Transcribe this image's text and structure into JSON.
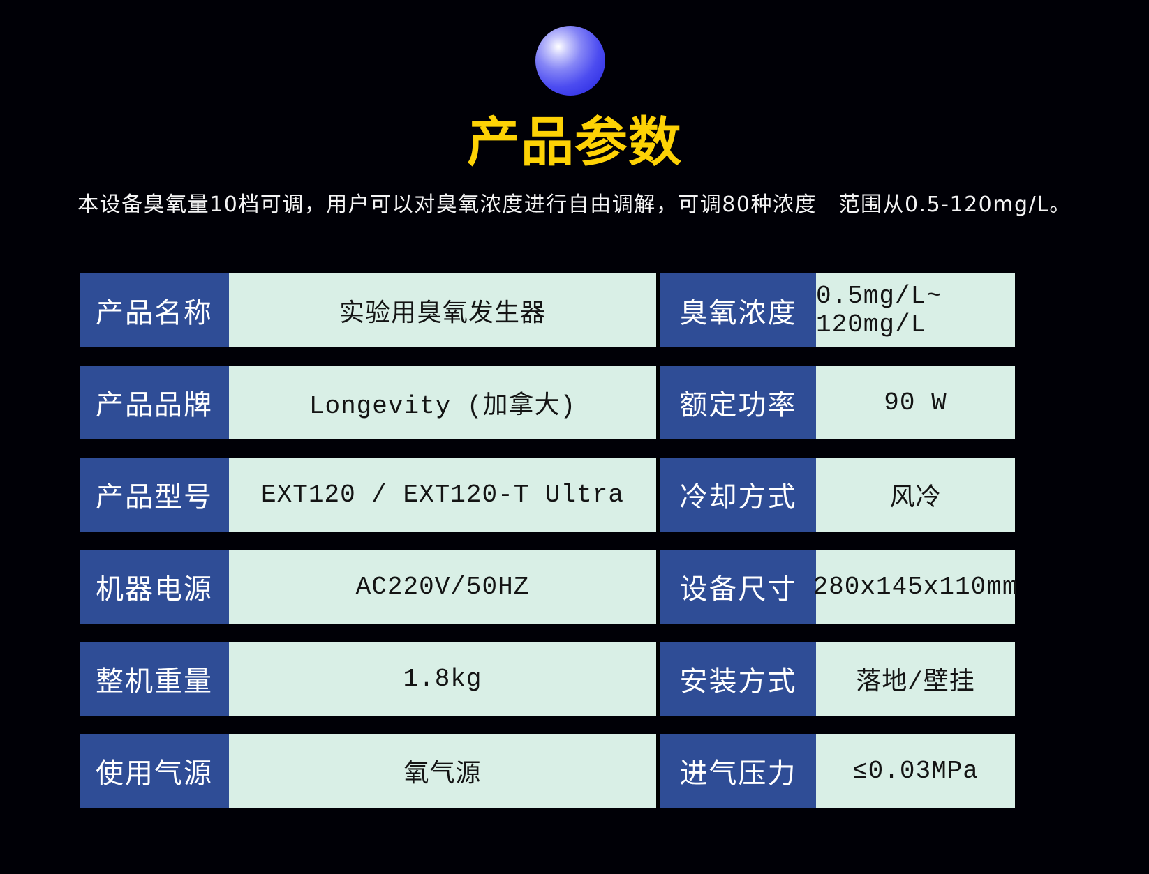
{
  "page": {
    "title": "产品参数",
    "description": "本设备臭氧量10档可调，用户可以对臭氧浓度进行自由调解，可调80种浓度　范围从0.5-120mg/L。"
  },
  "icons": {
    "sphere": "blue-glossy-sphere"
  },
  "colors": {
    "background": "#000006",
    "title_yellow": "#fdd205",
    "label_bg": "#2f4d96",
    "value_bg": "#d9efe6",
    "label_text": "#ffffff",
    "value_text": "#141414",
    "sphere_blue": "#3434e6"
  },
  "table": {
    "rows": [
      {
        "label_left": "产品名称",
        "value_left": "实验用臭氧发生器",
        "label_right": "臭氧浓度",
        "value_right": "0.5mg/L~ 120mg/L"
      },
      {
        "label_left": "产品品牌",
        "value_left": "Longevity (加拿大)",
        "label_right": "额定功率",
        "value_right": "90 W"
      },
      {
        "label_left": "产品型号",
        "value_left": "EXT120 / EXT120-T Ultra",
        "label_right": "冷却方式",
        "value_right": "风冷"
      },
      {
        "label_left": "机器电源",
        "value_left": "AC220V/50HZ",
        "label_right": "设备尺寸",
        "value_right": "280x145x110mm"
      },
      {
        "label_left": "整机重量",
        "value_left": "1.8kg",
        "label_right": "安装方式",
        "value_right": "落地/壁挂"
      },
      {
        "label_left": "使用气源",
        "value_left": "氧气源",
        "label_right": "进气压力",
        "value_right": "≤0.03MPa"
      }
    ]
  }
}
